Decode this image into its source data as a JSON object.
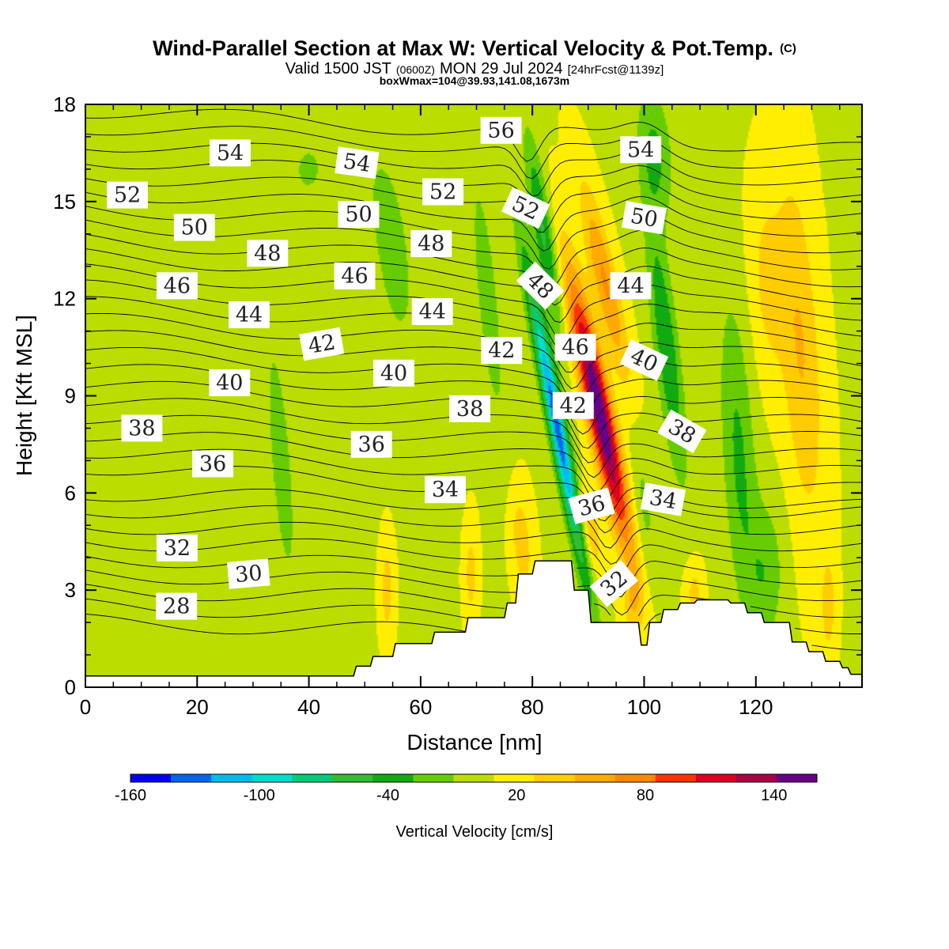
{
  "header": {
    "title": "Wind-Parallel Section at Max W: Vertical Velocity & Pot.Temp.",
    "title_mark": "(C)",
    "valid_prefix": "Valid 1500 JST",
    "valid_utc": "(0600Z)",
    "valid_date": "MON 29 Jul 2024",
    "forecast": "[24hrFcst@1139z]",
    "box_info": "boxWmax=104@39.93,141.08,1673m"
  },
  "chart_data": {
    "type": "heatmap",
    "xlabel": "Distance [nm]",
    "ylabel": "Height [Kft MSL]",
    "xlim": [
      0,
      139
    ],
    "ylim": [
      0,
      18
    ],
    "x_ticks": [
      0,
      20,
      40,
      60,
      80,
      100,
      120
    ],
    "y_ticks": [
      0,
      3,
      6,
      9,
      12,
      15,
      18
    ],
    "colorbar": {
      "label": "Vertical Velocity [cm/s]",
      "tick_labels": [
        -160,
        -100,
        -40,
        20,
        80,
        140
      ],
      "bounds": [
        -160,
        160
      ],
      "colors": [
        "#0000ee",
        "#0066ee",
        "#00bbee",
        "#00ddcc",
        "#00cc77",
        "#33bb33",
        "#11aa11",
        "#66cc00",
        "#bbdd00",
        "#ffee00",
        "#ffcc00",
        "#ffaa00",
        "#ff8800",
        "#ff3300",
        "#dd0022",
        "#aa0044",
        "#660088"
      ]
    },
    "terrain_profile": [
      [
        0,
        0.35
      ],
      [
        48,
        0.35
      ],
      [
        48.5,
        0.65
      ],
      [
        51,
        0.65
      ],
      [
        51.5,
        0.95
      ],
      [
        55,
        0.95
      ],
      [
        55.5,
        1.35
      ],
      [
        62,
        1.35
      ],
      [
        62.5,
        1.7
      ],
      [
        68,
        1.7
      ],
      [
        68.5,
        2.15
      ],
      [
        75,
        2.15
      ],
      [
        75.5,
        2.6
      ],
      [
        77,
        2.6
      ],
      [
        77.5,
        3.5
      ],
      [
        80,
        3.5
      ],
      [
        80.5,
        3.9
      ],
      [
        87,
        3.9
      ],
      [
        87.5,
        3.0
      ],
      [
        90,
        3.0
      ],
      [
        90.5,
        2.0
      ],
      [
        99,
        2.0
      ],
      [
        99.5,
        1.3
      ],
      [
        100.5,
        1.3
      ],
      [
        101,
        2.0
      ],
      [
        103,
        2.0
      ],
      [
        103.5,
        2.4
      ],
      [
        106,
        2.4
      ],
      [
        106.5,
        2.6
      ],
      [
        109,
        2.6
      ],
      [
        109.5,
        2.7
      ],
      [
        115,
        2.7
      ],
      [
        115.5,
        2.6
      ],
      [
        118,
        2.6
      ],
      [
        118.5,
        2.3
      ],
      [
        121,
        2.3
      ],
      [
        121.5,
        2.0
      ],
      [
        126,
        2.0
      ],
      [
        126.5,
        1.4
      ],
      [
        129,
        1.4
      ],
      [
        129.5,
        1.1
      ],
      [
        132,
        1.1
      ],
      [
        132.5,
        0.8
      ],
      [
        135,
        0.8
      ],
      [
        135.5,
        0.6
      ],
      [
        136.5,
        0.6
      ],
      [
        137,
        0.4
      ],
      [
        139,
        0.4
      ]
    ],
    "w_features": [
      {
        "x": 92,
        "y": 8.5,
        "sx": 2.3,
        "sy": 4.0,
        "tilt": -0.55,
        "w": 155
      },
      {
        "x": 93,
        "y": 12.5,
        "sx": 2.2,
        "sy": 3.0,
        "tilt": -0.55,
        "w": 60
      },
      {
        "x": 90,
        "y": 4.8,
        "sx": 2.0,
        "sy": 1.4,
        "tilt": -0.4,
        "w": 40
      },
      {
        "x": 84.5,
        "y": 8.0,
        "sx": 1.6,
        "sy": 4.8,
        "tilt": -0.5,
        "w": -140
      },
      {
        "x": 82,
        "y": 14.0,
        "sx": 1.8,
        "sy": 3.0,
        "tilt": -0.4,
        "w": -60
      },
      {
        "x": 104,
        "y": 10.5,
        "sx": 2.2,
        "sy": 4.0,
        "tilt": -0.3,
        "w": -55
      },
      {
        "x": 102,
        "y": 16.5,
        "sx": 3.0,
        "sy": 2.0,
        "tilt": -0.2,
        "w": -40
      },
      {
        "x": 117,
        "y": 7.0,
        "sx": 3.0,
        "sy": 5.0,
        "tilt": -0.15,
        "w": -40
      },
      {
        "x": 122,
        "y": 3.5,
        "sx": 3.0,
        "sy": 2.2,
        "tilt": 0,
        "w": -30
      },
      {
        "x": 72,
        "y": 12.0,
        "sx": 2.5,
        "sy": 5.0,
        "tilt": -0.25,
        "w": -25
      },
      {
        "x": 55,
        "y": 13.5,
        "sx": 5.0,
        "sy": 4.5,
        "tilt": -0.3,
        "w": -22
      },
      {
        "x": 35,
        "y": 7.0,
        "sx": 4.0,
        "sy": 8.0,
        "tilt": -0.2,
        "w": -20
      },
      {
        "x": 40,
        "y": 16.0,
        "sx": 8.0,
        "sy": 2.5,
        "tilt": 0,
        "w": -18
      },
      {
        "x": 128,
        "y": 10.5,
        "sx": 3.5,
        "sy": 5.5,
        "tilt": -0.15,
        "w": 40
      },
      {
        "x": 122,
        "y": 12.5,
        "sx": 3.0,
        "sy": 3.0,
        "tilt": -0.1,
        "w": 25
      },
      {
        "x": 78,
        "y": 4.5,
        "sx": 2.0,
        "sy": 1.8,
        "tilt": -0.2,
        "w": 32
      },
      {
        "x": 54,
        "y": 3.0,
        "sx": 1.2,
        "sy": 1.5,
        "tilt": 0,
        "w": 30
      },
      {
        "x": 69,
        "y": 3.5,
        "sx": 1.2,
        "sy": 1.5,
        "tilt": 0,
        "w": 28
      },
      {
        "x": 109,
        "y": 2.9,
        "sx": 1.5,
        "sy": 1.0,
        "tilt": 0,
        "w": 28
      },
      {
        "x": 133,
        "y": 2.5,
        "sx": 1.3,
        "sy": 1.5,
        "tilt": 0,
        "w": 30
      },
      {
        "x": 98,
        "y": 2.6,
        "sx": 1.8,
        "sy": 1.2,
        "tilt": 0,
        "w": 30
      },
      {
        "x": 100,
        "y": 5.5,
        "sx": 2.0,
        "sy": 2.5,
        "tilt": -0.2,
        "w": -22
      }
    ],
    "theta_range": [
      27,
      58
    ],
    "theta_interval": 1,
    "contour_labels": [
      {
        "text": "52",
        "x": 7.5,
        "y": 15.2,
        "rot": 0
      },
      {
        "text": "54",
        "x": 25.9,
        "y": 16.5,
        "rot": 0
      },
      {
        "text": "54",
        "x": 48.6,
        "y": 16.2,
        "rot": 8
      },
      {
        "text": "56",
        "x": 74.4,
        "y": 17.2,
        "rot": 0
      },
      {
        "text": "54",
        "x": 99.4,
        "y": 16.6,
        "rot": 0
      },
      {
        "text": "50",
        "x": 19.5,
        "y": 14.2,
        "rot": 0
      },
      {
        "text": "50",
        "x": 48.9,
        "y": 14.6,
        "rot": 0
      },
      {
        "text": "52",
        "x": 64.0,
        "y": 15.3,
        "rot": 0
      },
      {
        "text": "52",
        "x": 78.8,
        "y": 14.8,
        "rot": 25
      },
      {
        "text": "50",
        "x": 100.0,
        "y": 14.5,
        "rot": 10
      },
      {
        "text": "48",
        "x": 32.6,
        "y": 13.4,
        "rot": 0
      },
      {
        "text": "48",
        "x": 61.9,
        "y": 13.7,
        "rot": 0
      },
      {
        "text": "46",
        "x": 16.4,
        "y": 12.4,
        "rot": 0
      },
      {
        "text": "46",
        "x": 48.2,
        "y": 12.7,
        "rot": 0
      },
      {
        "text": "48",
        "x": 81.4,
        "y": 12.4,
        "rot": 45
      },
      {
        "text": "44",
        "x": 97.6,
        "y": 12.4,
        "rot": 0
      },
      {
        "text": "44",
        "x": 29.3,
        "y": 11.5,
        "rot": 0
      },
      {
        "text": "44",
        "x": 62.1,
        "y": 11.6,
        "rot": 0
      },
      {
        "text": "42",
        "x": 42.3,
        "y": 10.6,
        "rot": -10
      },
      {
        "text": "42",
        "x": 74.5,
        "y": 10.4,
        "rot": 0
      },
      {
        "text": "46",
        "x": 87.7,
        "y": 10.5,
        "rot": 0
      },
      {
        "text": "40",
        "x": 100.0,
        "y": 10.1,
        "rot": 25
      },
      {
        "text": "40",
        "x": 25.8,
        "y": 9.4,
        "rot": 0
      },
      {
        "text": "40",
        "x": 55.2,
        "y": 9.7,
        "rot": 0
      },
      {
        "text": "38",
        "x": 10.1,
        "y": 8.0,
        "rot": 0
      },
      {
        "text": "38",
        "x": 68.8,
        "y": 8.6,
        "rot": 0
      },
      {
        "text": "42",
        "x": 87.3,
        "y": 8.7,
        "rot": 0
      },
      {
        "text": "38",
        "x": 106.8,
        "y": 7.9,
        "rot": 30
      },
      {
        "text": "36",
        "x": 22.8,
        "y": 6.9,
        "rot": 0
      },
      {
        "text": "36",
        "x": 51.2,
        "y": 7.5,
        "rot": 0
      },
      {
        "text": "34",
        "x": 64.4,
        "y": 6.1,
        "rot": 0
      },
      {
        "text": "36",
        "x": 90.6,
        "y": 5.6,
        "rot": -15
      },
      {
        "text": "34",
        "x": 103.4,
        "y": 5.8,
        "rot": 10
      },
      {
        "text": "32",
        "x": 16.4,
        "y": 4.3,
        "rot": 0
      },
      {
        "text": "30",
        "x": 29.2,
        "y": 3.5,
        "rot": -5
      },
      {
        "text": "32",
        "x": 94.6,
        "y": 3.2,
        "rot": -40
      },
      {
        "text": "28",
        "x": 16.3,
        "y": 2.5,
        "rot": 0
      }
    ]
  }
}
